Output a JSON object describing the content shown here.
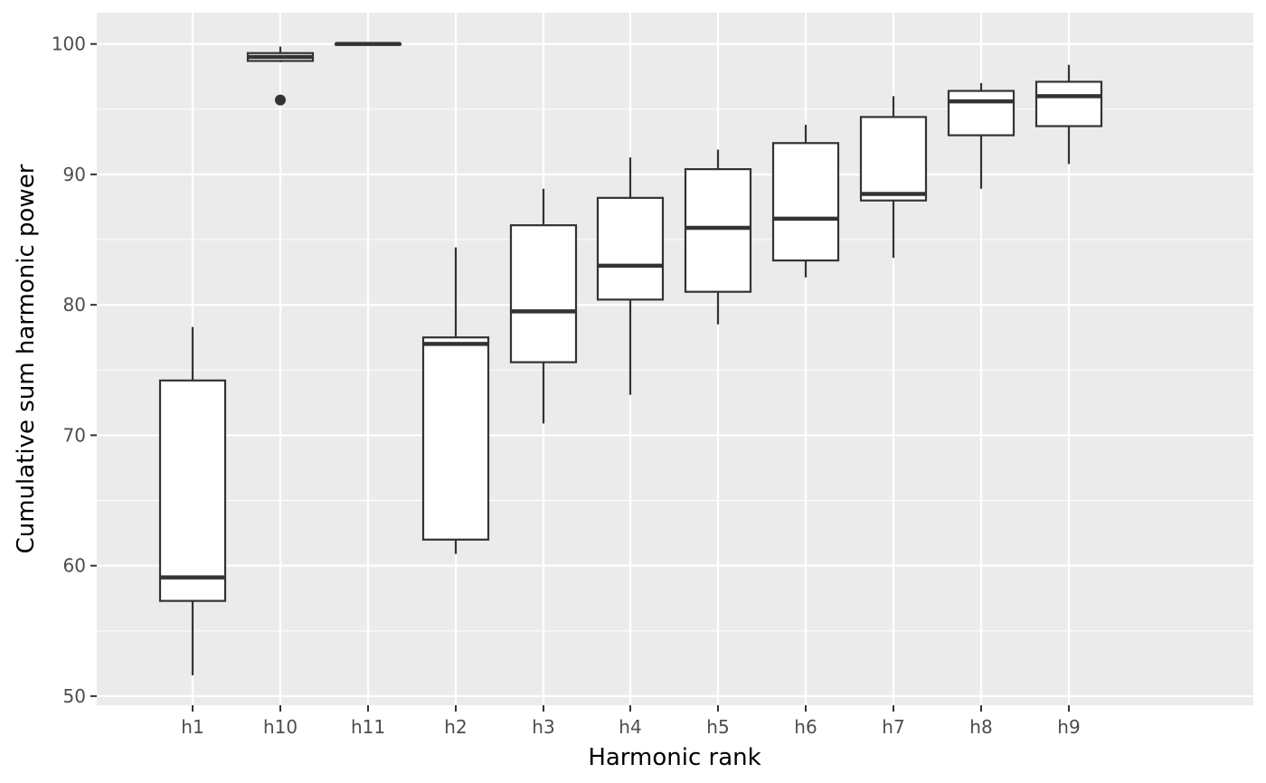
{
  "chart_data": {
    "type": "boxplot",
    "title": "",
    "xlabel": "Harmonic rank",
    "ylabel": "Cumulative sum harmonic power",
    "ylim": [
      49.3,
      102.4
    ],
    "yticks": [
      50,
      60,
      70,
      80,
      90,
      100
    ],
    "grid": true,
    "legend": "none",
    "colors": {
      "panel": "#ebebeb",
      "grid": "#ffffff",
      "box_fill": "#ffffff",
      "box_stroke": "#333333",
      "tick_label": "#4d4d4d"
    },
    "categories": [
      "h1",
      "h10",
      "h11",
      "h2",
      "h3",
      "h4",
      "h5",
      "h6",
      "h7",
      "h8",
      "h9"
    ],
    "boxes": [
      {
        "category": "h1",
        "whisker_low": 51.6,
        "q1": 57.3,
        "median": 59.1,
        "q3": 74.2,
        "whisker_high": 78.3,
        "outliers": []
      },
      {
        "category": "h10",
        "whisker_low": 98.6,
        "q1": 98.7,
        "median": 99.0,
        "q3": 99.3,
        "whisker_high": 99.8,
        "outliers": [
          95.7
        ]
      },
      {
        "category": "h11",
        "whisker_low": 100.0,
        "q1": 100.0,
        "median": 100.0,
        "q3": 100.0,
        "whisker_high": 100.0,
        "outliers": []
      },
      {
        "category": "h2",
        "whisker_low": 60.9,
        "q1": 62.0,
        "median": 77.0,
        "q3": 77.5,
        "whisker_high": 84.4,
        "outliers": []
      },
      {
        "category": "h3",
        "whisker_low": 70.9,
        "q1": 75.6,
        "median": 79.5,
        "q3": 86.1,
        "whisker_high": 88.9,
        "outliers": []
      },
      {
        "category": "h4",
        "whisker_low": 73.1,
        "q1": 80.4,
        "median": 83.0,
        "q3": 88.2,
        "whisker_high": 91.3,
        "outliers": []
      },
      {
        "category": "h5",
        "whisker_low": 78.5,
        "q1": 81.0,
        "median": 85.9,
        "q3": 90.4,
        "whisker_high": 91.9,
        "outliers": []
      },
      {
        "category": "h6",
        "whisker_low": 82.1,
        "q1": 83.4,
        "median": 86.6,
        "q3": 92.4,
        "whisker_high": 93.8,
        "outliers": []
      },
      {
        "category": "h7",
        "whisker_low": 83.6,
        "q1": 88.0,
        "median": 88.5,
        "q3": 94.4,
        "whisker_high": 96.0,
        "outliers": []
      },
      {
        "category": "h8",
        "whisker_low": 88.9,
        "q1": 93.0,
        "median": 95.6,
        "q3": 96.4,
        "whisker_high": 97.0,
        "outliers": []
      },
      {
        "category": "h9",
        "whisker_low": 90.8,
        "q1": 93.7,
        "median": 96.0,
        "q3": 97.1,
        "whisker_high": 98.4,
        "outliers": []
      }
    ]
  }
}
